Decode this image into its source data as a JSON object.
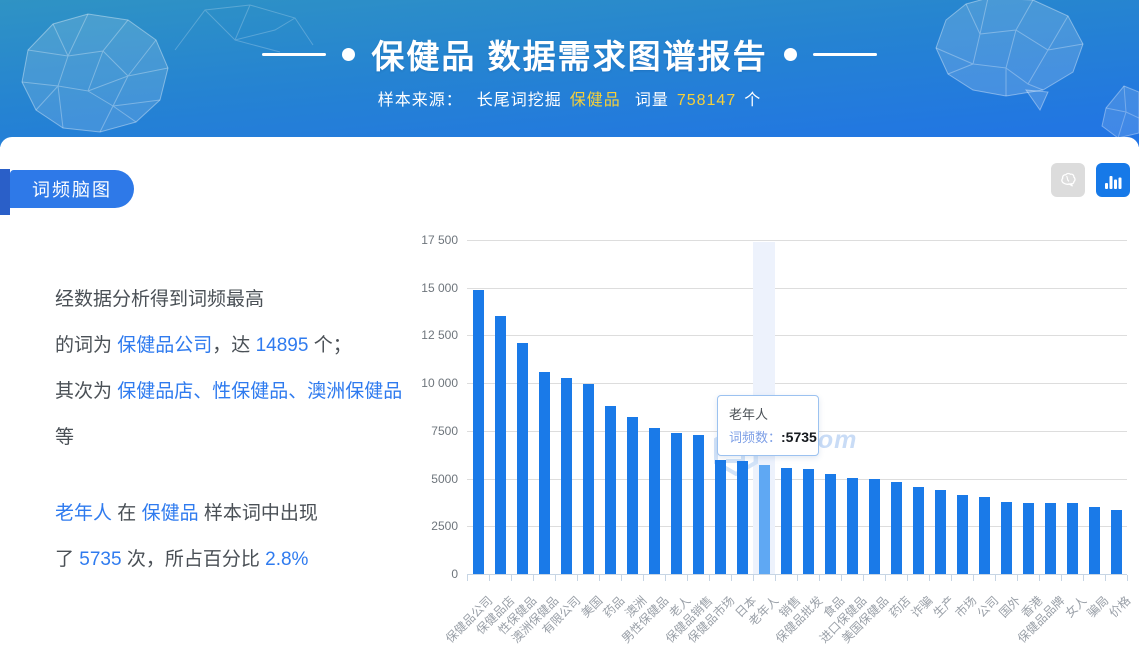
{
  "header": {
    "title": "保健品 数据需求图谱报告",
    "subtitle": {
      "source_label": "样本来源：",
      "source_link": "长尾词挖掘",
      "keyword": "保健品",
      "volume_label": "词量",
      "volume_value": "758147",
      "volume_unit": "个"
    }
  },
  "section": {
    "tab_label": "词频脑图",
    "toolbar": {
      "mindmap_button_icon": "brain-icon",
      "barchart_button_icon": "bar-chart-icon"
    }
  },
  "description": {
    "p1_l1": "经数据分析得到词频最高",
    "p1_pre": "的词为 ",
    "p1_link": "保健品公司",
    "p1_mid": "，达 ",
    "p1_num": "14895",
    "p1_suf": " 个；",
    "p2_pre": "其次为 ",
    "p2_link": "保健品店、性保健品、澳洲保健品",
    "p2_suf": " 等",
    "p3_link1": "老年人",
    "p3_mid": " 在 ",
    "p3_link2": "保健品",
    "p3_suf": " 样本词中出现",
    "p4_pre": "了 ",
    "p4_num": "5735",
    "p4_mid": " 次，所占百分比 ",
    "p4_pct": "2.8%"
  },
  "tooltip": {
    "title": "老年人",
    "label": "词频数：",
    "value": ":5735"
  },
  "watermark_text": ".com",
  "chart_data": {
    "type": "bar",
    "title": "",
    "xlabel": "",
    "ylabel": "",
    "categories": [
      "保健品公司",
      "保健品店",
      "性保健品",
      "澳洲保健品",
      "有限公司",
      "美国",
      "药品",
      "澳洲",
      "男性保健品",
      "老人",
      "保健品销售",
      "保健品市场",
      "日本",
      "老年人",
      "销售",
      "保健品批发",
      "食品",
      "进口保健品",
      "美国保健品",
      "药店",
      "诈骗",
      "生产",
      "市场",
      "公司",
      "国外",
      "香港",
      "保健品品牌",
      "女人",
      "骗局",
      "价格"
    ],
    "values": [
      14895,
      13520,
      12090,
      10560,
      10290,
      9940,
      8800,
      8240,
      7630,
      7400,
      7300,
      5990,
      5920,
      5735,
      5570,
      5500,
      5225,
      5050,
      4980,
      4840,
      4550,
      4420,
      4140,
      4020,
      3790,
      3720,
      3710,
      3700,
      3530,
      3360
    ],
    "ylim": [
      0,
      17500
    ],
    "ytick_values": [
      0,
      2500,
      5000,
      7500,
      10000,
      12500,
      15000,
      17500
    ],
    "ytick_labels": [
      "0",
      "2500",
      "5000",
      "7500",
      "10 000",
      "12 500",
      "15 000",
      "17 500"
    ],
    "grid": true,
    "legend_position": "none",
    "bar_color": "#1A7AE8",
    "highlight": {
      "index": 13,
      "category": "老年人",
      "value": 5735,
      "bar_color": "#5FA8F3",
      "band_color": "#EDF2FC"
    }
  }
}
